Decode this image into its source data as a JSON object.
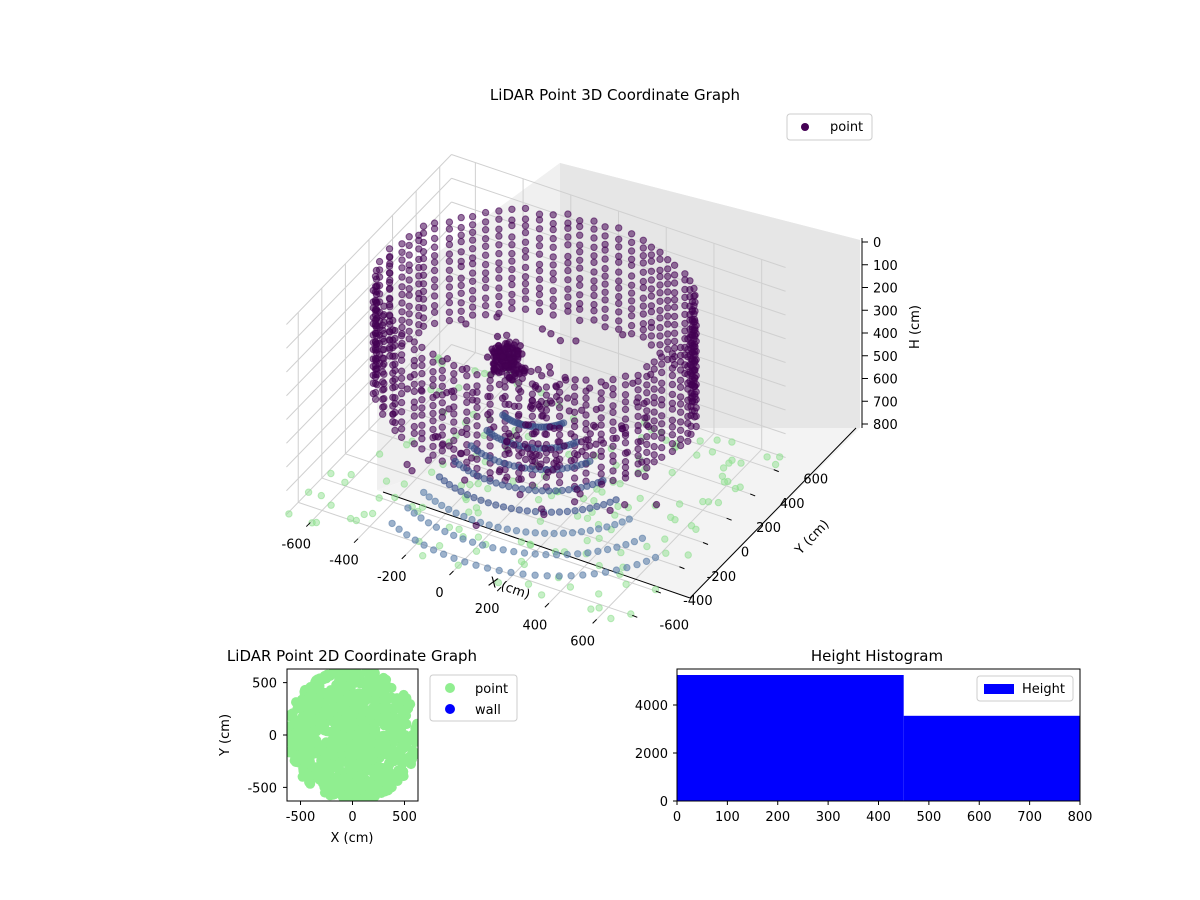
{
  "figure": {
    "colors": {
      "point3d_high": "#440154",
      "point3d_mid": "#3b528b",
      "point3d_low": "#5b7fa8",
      "floor_points": "#8fe08f",
      "point2d": "#90ee90",
      "wall2d": "#0000ff",
      "histogram": "#0000ff",
      "pane": "#f2f2f2",
      "pane_back": "#e8e8e8",
      "grid": "#d0d0d0"
    }
  },
  "chart_data": [
    {
      "id": "lidar-3d",
      "type": "scatter",
      "title": "LiDAR Point 3D Coordinate Graph",
      "xlabel": "X (cm)",
      "ylabel": "Y (cm)",
      "zlabel": "H (cm)",
      "xlim": [
        -700,
        700
      ],
      "ylim": [
        -700,
        700
      ],
      "zlim": [
        0,
        800
      ],
      "zaxis_inverted": true,
      "xticks": [
        "-600",
        "-400",
        "-200",
        "0",
        "200",
        "400",
        "600"
      ],
      "yticks": [
        "-600",
        "-400",
        "-200",
        "0",
        "200",
        "400",
        "600"
      ],
      "zticks": [
        "0",
        "100",
        "200",
        "300",
        "400",
        "500",
        "600",
        "700",
        "800"
      ],
      "legend": {
        "entries": [
          "point"
        ],
        "placement": "top-right"
      },
      "series": [
        {
          "name": "point",
          "ring_radius": 600,
          "ring_height": [
            0,
            450
          ],
          "cluster": {
            "x": 0,
            "y": -250,
            "h": 100
          },
          "fan_height": [
            450,
            800
          ]
        }
      ],
      "grid": true
    },
    {
      "id": "lidar-2d",
      "type": "scatter",
      "title": "LiDAR Point 2D Coordinate Graph",
      "xlabel": "X (cm)",
      "ylabel": "Y (cm)",
      "xlim": [
        -630,
        630
      ],
      "ylim": [
        -630,
        630
      ],
      "xticks": [
        "-500",
        "0",
        "500"
      ],
      "yticks": [
        "-500",
        "0",
        "500"
      ],
      "legend": {
        "entries": [
          "point",
          "wall"
        ],
        "placement": "outside-right"
      },
      "series": [
        {
          "name": "point",
          "shape": "disc",
          "radius": 630
        },
        {
          "name": "wall",
          "points": []
        }
      ]
    },
    {
      "id": "height-histogram",
      "type": "bar",
      "title": "Height Histogram",
      "xlim": [
        0,
        800
      ],
      "ylim": [
        0,
        5500
      ],
      "xticks": [
        "0",
        "100",
        "200",
        "300",
        "400",
        "500",
        "600",
        "700",
        "800"
      ],
      "yticks": [
        "0",
        "2000",
        "4000"
      ],
      "legend": {
        "entries": [
          "Height"
        ],
        "placement": "top-right"
      },
      "series": [
        {
          "name": "Height",
          "bins": [
            {
              "from": 0,
              "to": 450,
              "count": 5250
            },
            {
              "from": 450,
              "to": 800,
              "count": 3550
            }
          ]
        }
      ]
    }
  ]
}
